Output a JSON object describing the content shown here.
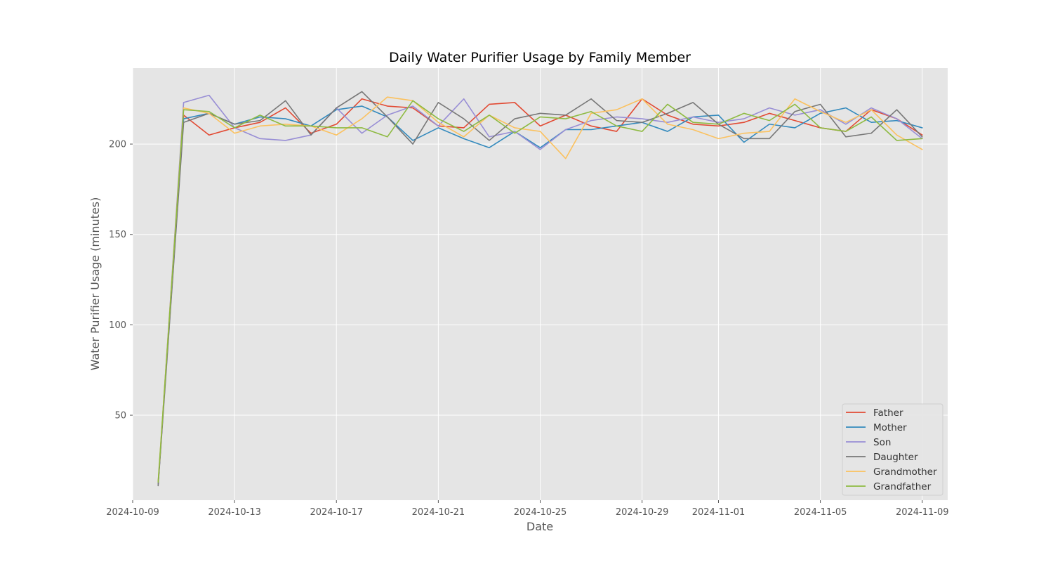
{
  "chart_data": {
    "type": "line",
    "title": "Daily Water Purifier Usage by Family Member",
    "xlabel": "Date",
    "ylabel": "Water Purifier Usage (minutes)",
    "x_start": "2024-10-10",
    "x_end": "2024-11-09",
    "xlim": [
      "2024-10-09",
      "2024-11-10"
    ],
    "ylim": [
      3,
      242
    ],
    "x_ticks": [
      "2024-10-09",
      "2024-10-13",
      "2024-10-17",
      "2024-10-21",
      "2024-10-25",
      "2024-10-29",
      "2024-11-01",
      "2024-11-05",
      "2024-11-09"
    ],
    "y_ticks": [
      50,
      100,
      150,
      200
    ],
    "grid": true,
    "legend_position": "bottom-right",
    "series": [
      {
        "name": "Father",
        "color": "#E24A33",
        "values": [
          12,
          216,
          205,
          209,
          212,
          220,
          206,
          211,
          225,
          221,
          220,
          210,
          209,
          222,
          223,
          210,
          216,
          210,
          207,
          225,
          216,
          211,
          210,
          212,
          217,
          213,
          209,
          207,
          219,
          214,
          205
        ]
      },
      {
        "name": "Mother",
        "color": "#348ABD",
        "values": [
          12,
          214,
          217,
          211,
          215,
          214,
          210,
          219,
          221,
          215,
          202,
          209,
          203,
          198,
          207,
          198,
          208,
          208,
          210,
          212,
          207,
          215,
          216,
          201,
          211,
          209,
          217,
          220,
          212,
          213,
          209
        ]
      },
      {
        "name": "Son",
        "color": "#988ED5",
        "values": [
          12,
          223,
          227,
          209,
          203,
          202,
          205,
          220,
          206,
          216,
          221,
          210,
          225,
          204,
          207,
          197,
          208,
          213,
          215,
          214,
          212,
          215,
          212,
          214,
          220,
          216,
          219,
          211,
          220,
          214,
          203
        ]
      },
      {
        "name": "Daughter",
        "color": "#777777",
        "values": [
          11,
          212,
          217,
          211,
          213,
          224,
          205,
          220,
          229,
          215,
          200,
          223,
          214,
          202,
          214,
          217,
          216,
          225,
          213,
          212,
          217,
          223,
          211,
          203,
          203,
          218,
          222,
          204,
          206,
          219,
          204
        ]
      },
      {
        "name": "Grandmother",
        "color": "#FBC15E",
        "values": [
          13,
          220,
          217,
          206,
          210,
          211,
          210,
          205,
          214,
          226,
          224,
          212,
          204,
          216,
          209,
          207,
          192,
          217,
          219,
          225,
          211,
          208,
          203,
          206,
          207,
          225,
          218,
          212,
          219,
          205,
          197
        ]
      },
      {
        "name": "Grandfather",
        "color": "#8EBA42",
        "values": [
          13,
          219,
          218,
          209,
          216,
          210,
          210,
          209,
          209,
          204,
          224,
          214,
          207,
          216,
          206,
          215,
          214,
          218,
          210,
          207,
          222,
          212,
          211,
          217,
          213,
          222,
          209,
          207,
          215,
          202,
          203
        ]
      }
    ]
  }
}
